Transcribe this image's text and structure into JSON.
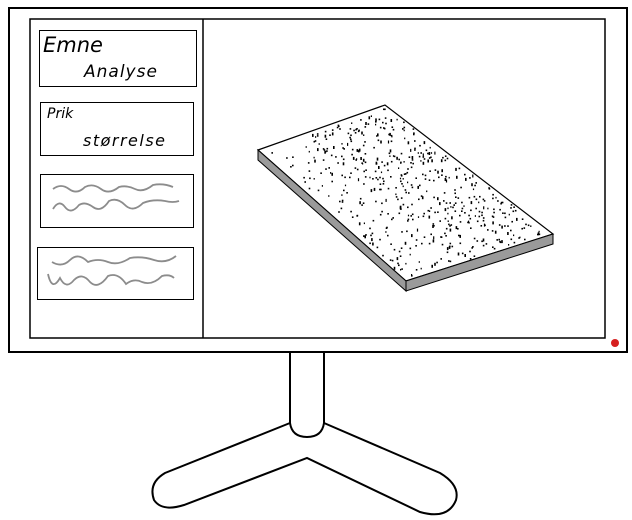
{
  "sidebar": {
    "items": [
      {
        "line1": "Emne",
        "line2": "Analyse"
      },
      {
        "line1": "Prik",
        "line2": "størrelse"
      },
      {
        "squiggle": "placeholder-wave"
      },
      {
        "squiggle": "placeholder-wave"
      }
    ]
  },
  "colors": {
    "outline": "#000000",
    "slab_side": "#9a9a9a",
    "squiggle": "#8c8c8c",
    "power_led": "#d62020"
  }
}
